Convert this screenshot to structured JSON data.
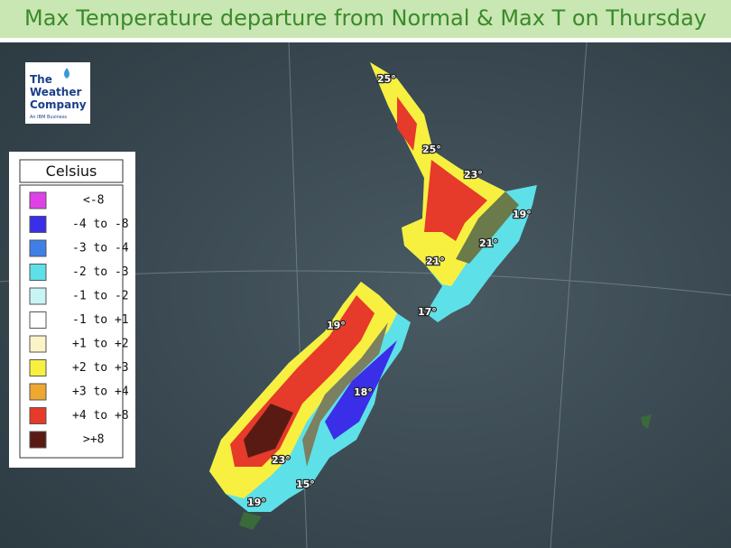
{
  "header": {
    "title": "Max Temperature departure from Normal & Max T on Thursday"
  },
  "logo": {
    "lines": [
      "The",
      "Weather",
      "Company"
    ],
    "tagline": "An IBM Business"
  },
  "legend": {
    "title": "Celsius",
    "items": [
      {
        "label": "<-8",
        "color": "#e040e8"
      },
      {
        "label": "-4 to -8",
        "color": "#3a2ee8"
      },
      {
        "label": "-3 to -4",
        "color": "#3f7fe8"
      },
      {
        "label": "-2 to -3",
        "color": "#5ee0e8"
      },
      {
        "label": "-1 to -2",
        "color": "#c8f4f4"
      },
      {
        "label": "-1 to +1",
        "color": "#ffffff"
      },
      {
        "label": "+1 to +2",
        "color": "#fbf4c8"
      },
      {
        "label": "+2 to +3",
        "color": "#f8f040"
      },
      {
        "label": "+3 to +4",
        "color": "#eea830"
      },
      {
        "label": "+4 to +8",
        "color": "#e63a2a"
      },
      {
        "label": ">+8",
        "color": "#5a1a14"
      }
    ]
  },
  "map_labels": [
    "25°",
    "25°",
    "23°",
    "19°",
    "21°",
    "21°",
    "17°",
    "19°",
    "18°",
    "23°",
    "15°",
    "19°"
  ]
}
